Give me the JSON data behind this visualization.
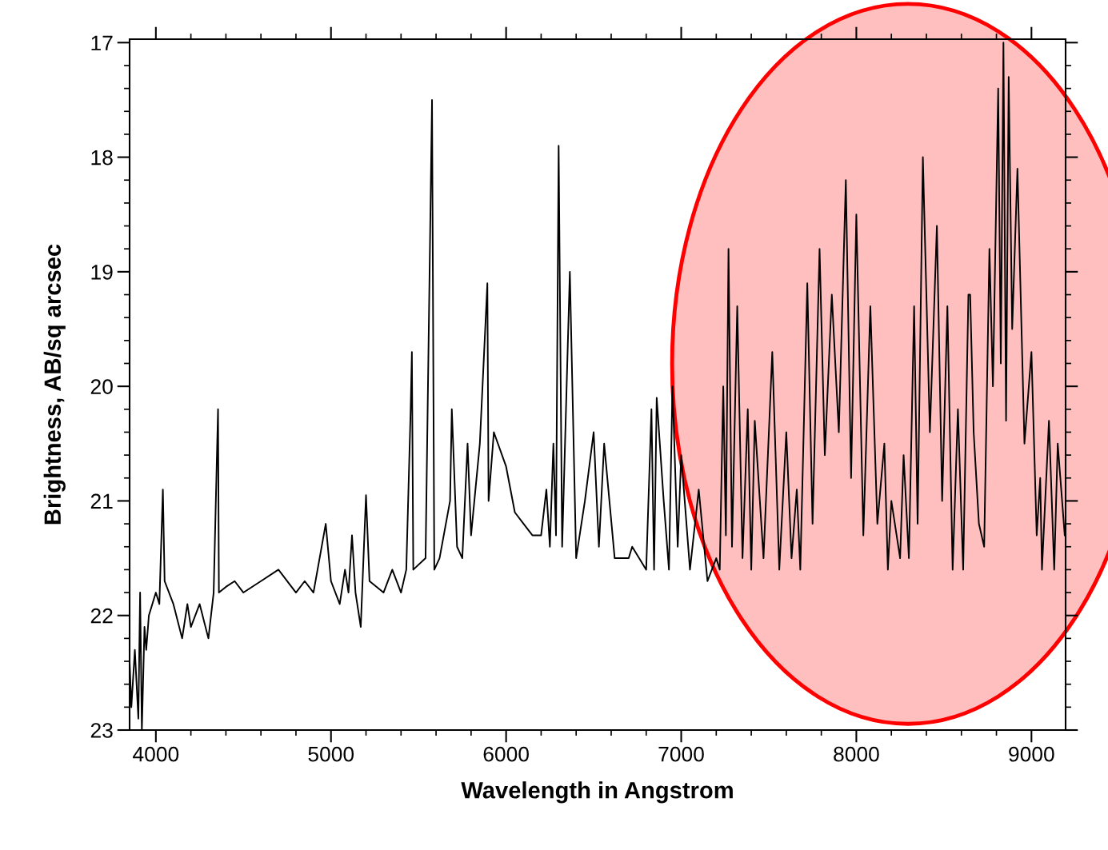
{
  "chart_data": {
    "type": "line",
    "xlabel": "Wavelength in Angstrom",
    "ylabel": "Brightness, AB/sq arcsec",
    "xlim": [
      3850,
      9195
    ],
    "ylim": [
      23.0,
      16.97
    ],
    "xticks": [
      4000,
      5000,
      6000,
      7000,
      8000,
      9000
    ],
    "yticks": [
      17,
      18,
      19,
      20,
      21,
      22,
      23
    ],
    "grid": false,
    "marker": "none",
    "line_style": "solid",
    "series": [
      {
        "color": "#000000",
        "x": [
          3850,
          3860,
          3880,
          3900,
          3910,
          3920,
          3935,
          3945,
          3960,
          4000,
          4020,
          4040,
          4050,
          4100,
          4150,
          4180,
          4200,
          4250,
          4300,
          4330,
          4355,
          4360,
          4400,
          4450,
          4500,
          4600,
          4700,
          4800,
          4850,
          4900,
          4970,
          5000,
          5050,
          5080,
          5100,
          5120,
          5140,
          5170,
          5200,
          5220,
          5300,
          5350,
          5400,
          5430,
          5455,
          5462,
          5470,
          5540,
          5577,
          5590,
          5620,
          5680,
          5690,
          5720,
          5750,
          5780,
          5800,
          5850,
          5893,
          5900,
          5930,
          6000,
          6050,
          6100,
          6150,
          6200,
          6230,
          6250,
          6270,
          6285,
          6300,
          6320,
          6364,
          6400,
          6450,
          6500,
          6530,
          6560,
          6590,
          6620,
          6700,
          6720,
          6800,
          6830,
          6845,
          6860,
          6900,
          6930,
          6950,
          6980,
          7000,
          7050,
          7100,
          7150,
          7200,
          7220,
          7240,
          7255,
          7270,
          7290,
          7320,
          7350,
          7380,
          7400,
          7420,
          7470,
          7520,
          7560,
          7600,
          7630,
          7660,
          7680,
          7720,
          7750,
          7790,
          7820,
          7860,
          7900,
          7940,
          7970,
          8000,
          8040,
          8080,
          8120,
          8160,
          8180,
          8200,
          8250,
          8270,
          8300,
          8330,
          8350,
          8380,
          8420,
          8460,
          8490,
          8520,
          8550,
          8580,
          8610,
          8640,
          8650,
          8670,
          8700,
          8730,
          8760,
          8780,
          8810,
          8825,
          8840,
          8855,
          8870,
          8890,
          8920,
          8960,
          9000,
          9030,
          9050,
          9060,
          9100,
          9130,
          9150,
          9190
        ],
        "values": [
          22.4,
          22.8,
          22.3,
          22.9,
          21.8,
          23.0,
          22.1,
          22.3,
          22.0,
          21.8,
          21.9,
          20.9,
          21.7,
          21.9,
          22.2,
          21.9,
          22.1,
          21.9,
          22.2,
          21.8,
          20.2,
          21.8,
          21.75,
          21.7,
          21.8,
          21.7,
          21.6,
          21.8,
          21.7,
          21.8,
          21.2,
          21.7,
          21.9,
          21.6,
          21.8,
          21.3,
          21.8,
          22.1,
          20.95,
          21.7,
          21.8,
          21.6,
          21.8,
          21.6,
          20.2,
          19.7,
          21.6,
          21.5,
          17.5,
          21.6,
          21.5,
          21.0,
          20.2,
          21.4,
          21.5,
          20.5,
          21.3,
          20.5,
          19.1,
          21.0,
          20.4,
          20.7,
          21.1,
          21.2,
          21.3,
          21.3,
          20.9,
          21.4,
          20.5,
          21.3,
          17.9,
          21.4,
          19.0,
          21.5,
          21.0,
          20.4,
          21.4,
          20.5,
          21.0,
          21.5,
          21.5,
          21.4,
          21.6,
          20.2,
          21.6,
          20.1,
          21.0,
          21.6,
          20.0,
          21.4,
          20.6,
          21.6,
          20.9,
          21.7,
          21.5,
          21.6,
          20.0,
          21.3,
          18.8,
          21.4,
          19.3,
          21.5,
          20.2,
          21.6,
          20.3,
          21.5,
          19.7,
          21.6,
          20.4,
          21.5,
          20.9,
          21.6,
          19.1,
          21.2,
          18.8,
          20.6,
          19.2,
          20.4,
          18.2,
          20.8,
          18.5,
          21.3,
          19.3,
          21.2,
          20.5,
          21.6,
          21.0,
          21.5,
          20.6,
          21.5,
          19.3,
          21.2,
          18.0,
          20.4,
          18.6,
          21.0,
          19.3,
          21.6,
          20.2,
          21.6,
          19.2,
          19.2,
          20.4,
          21.2,
          21.4,
          18.8,
          20.0,
          17.4,
          19.8,
          17.0,
          20.3,
          17.3,
          19.5,
          18.1,
          20.5,
          19.7,
          21.3,
          20.8,
          21.6,
          20.3,
          21.6,
          20.5,
          21.3
        ]
      }
    ]
  }
}
